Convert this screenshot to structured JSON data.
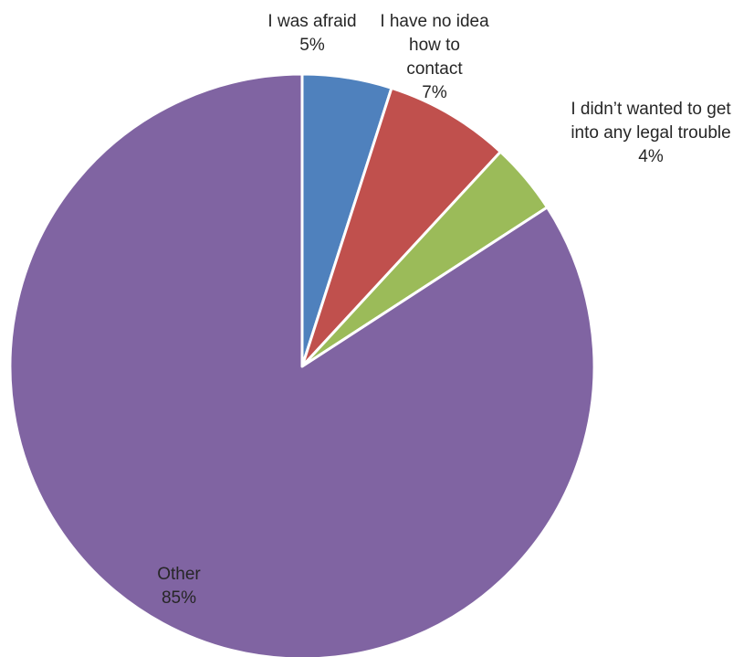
{
  "chart_data": {
    "type": "pie",
    "title": "",
    "slices": [
      {
        "label": [
          "I was afraid"
        ],
        "value": 5,
        "value_label": "5%",
        "color": "#4f81bd"
      },
      {
        "label": [
          "I have no idea",
          "how to",
          "contact"
        ],
        "value": 7,
        "value_label": "7%",
        "color": "#c0504d"
      },
      {
        "label": [
          "I didn’t wanted to get",
          "into any legal trouble"
        ],
        "value": 4,
        "value_label": "4%",
        "color": "#9bbb59"
      },
      {
        "label": [
          "Other"
        ],
        "value": 85,
        "value_label": "85%",
        "color": "#8064a2"
      }
    ],
    "start_angle": "12 o'clock",
    "direction": "clockwise",
    "legend": "none",
    "slice_border_color": "#ffffff"
  }
}
